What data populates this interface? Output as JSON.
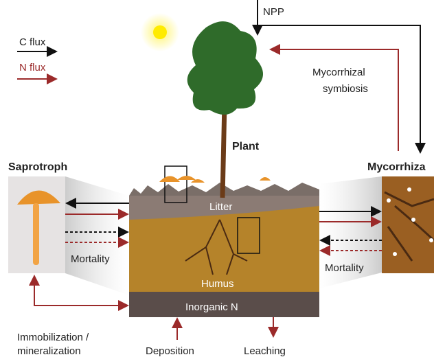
{
  "legend": {
    "c_flux": "C flux",
    "n_flux": "N flux"
  },
  "npp": "NPP",
  "symbiosis": [
    "Mycorrhizal",
    "symbiosis"
  ],
  "plant": "Plant",
  "saprotroph": "Saprotroph",
  "mycorrhiza": "Mycorrhiza",
  "soil": {
    "litter": "Litter",
    "humus": "Humus",
    "inorganic": "Inorganic N"
  },
  "mortality_left": "Mortality",
  "mortality_right": "Mortality",
  "immobilization": [
    "Immobilization /",
    "mineralization"
  ],
  "deposition": "Deposition",
  "leaching": "Leaching"
}
